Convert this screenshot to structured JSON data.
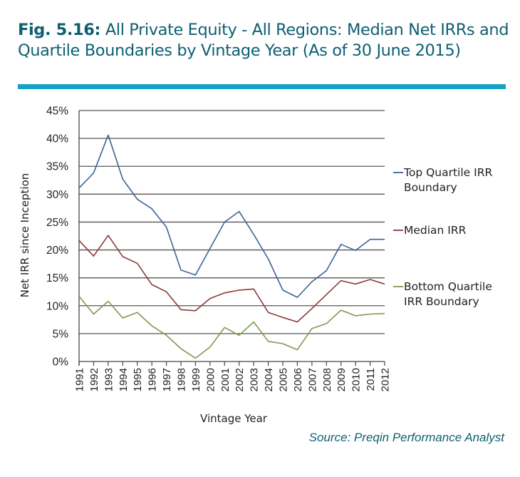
{
  "title": {
    "fig_label": "Fig. 5.16:",
    "text": " All Private Equity - All Regions: Median Net IRRs and Quartile Boundaries by Vintage Year (As of 30 June 2015)"
  },
  "source": "Source: Preqin Performance Analyst",
  "colors": {
    "title": "#0e5f72",
    "title_bar": "#16a2c4",
    "top_quartile": "#3d6494",
    "median": "#8b3a3d",
    "bottom_quartile": "#7d9a4e",
    "grid": "#555555"
  },
  "chart_data": {
    "type": "line",
    "title": "All Private Equity - All Regions: Median Net IRRs and Quartile Boundaries by Vintage Year (As of 30 June 2015)",
    "xlabel": "Vintage Year",
    "ylabel": "Net IRR since Inception",
    "x": [
      "1991",
      "1992",
      "1993",
      "1994",
      "1995",
      "1996",
      "1997",
      "1998",
      "1999",
      "2000",
      "2001",
      "2002",
      "2003",
      "2004",
      "2005",
      "2006",
      "2007",
      "2008",
      "2009",
      "2010",
      "2011",
      "2012"
    ],
    "ylim": [
      0,
      45
    ],
    "yticks": [
      0,
      5,
      10,
      15,
      20,
      25,
      30,
      35,
      40,
      45
    ],
    "ytick_labels": [
      "0%",
      "5%",
      "10%",
      "15%",
      "20%",
      "25%",
      "30%",
      "35%",
      "40%",
      "45%"
    ],
    "grid": true,
    "legend_position": "right",
    "series": [
      {
        "name": "Top Quartile IRR Boundary",
        "legend_lines": [
          "Top Quartile IRR",
          "Boundary"
        ],
        "color_key": "top_quartile",
        "values": [
          31.1,
          33.8,
          40.6,
          32.7,
          29.1,
          27.4,
          24.1,
          16.4,
          15.5,
          20.3,
          25.0,
          26.9,
          22.8,
          18.4,
          12.8,
          11.5,
          14.3,
          16.3,
          21.0,
          19.9,
          21.9,
          21.9
        ]
      },
      {
        "name": "Median IRR",
        "legend_lines": [
          "Median IRR"
        ],
        "color_key": "median",
        "values": [
          21.7,
          18.9,
          22.6,
          18.8,
          17.6,
          13.8,
          12.5,
          9.3,
          9.1,
          11.3,
          12.3,
          12.8,
          13.0,
          8.8,
          7.9,
          7.1,
          9.5,
          12.0,
          14.5,
          13.9,
          14.7,
          13.9
        ]
      },
      {
        "name": "Bottom Quartile IRR Boundary",
        "legend_lines": [
          "Bottom Quartile",
          "IRR Boundary"
        ],
        "color_key": "bottom_quartile",
        "values": [
          11.7,
          8.5,
          10.8,
          7.8,
          8.8,
          6.4,
          4.7,
          2.3,
          0.6,
          2.6,
          6.1,
          4.7,
          7.1,
          3.6,
          3.2,
          2.1,
          5.9,
          6.8,
          9.2,
          8.2,
          8.5,
          8.6
        ]
      }
    ]
  }
}
